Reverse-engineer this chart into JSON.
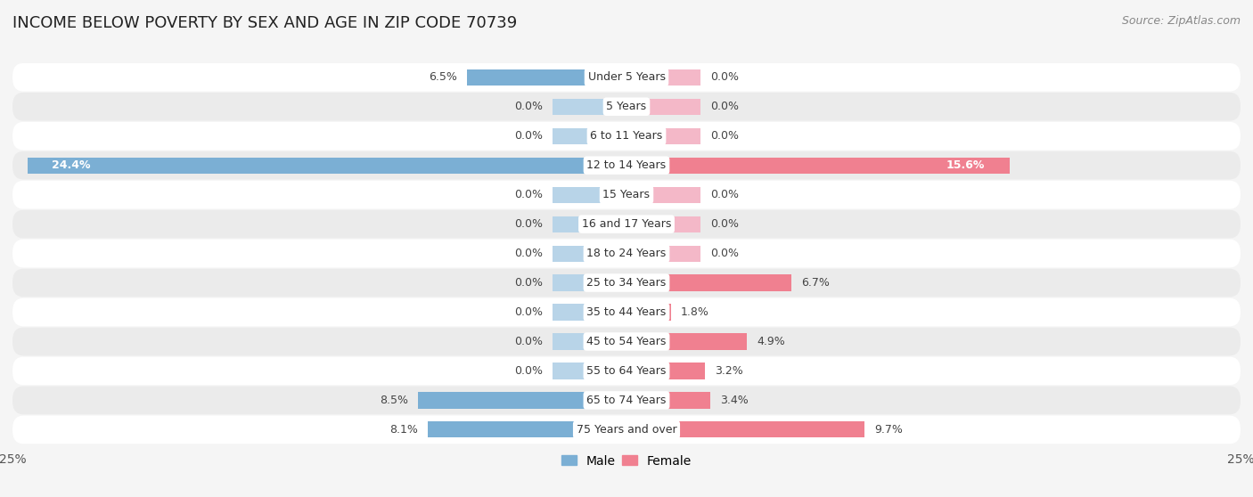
{
  "title": "INCOME BELOW POVERTY BY SEX AND AGE IN ZIP CODE 70739",
  "source": "Source: ZipAtlas.com",
  "categories": [
    "Under 5 Years",
    "5 Years",
    "6 to 11 Years",
    "12 to 14 Years",
    "15 Years",
    "16 and 17 Years",
    "18 to 24 Years",
    "25 to 34 Years",
    "35 to 44 Years",
    "45 to 54 Years",
    "55 to 64 Years",
    "65 to 74 Years",
    "75 Years and over"
  ],
  "male": [
    6.5,
    0.0,
    0.0,
    24.4,
    0.0,
    0.0,
    0.0,
    0.0,
    0.0,
    0.0,
    0.0,
    8.5,
    8.1
  ],
  "female": [
    0.0,
    0.0,
    0.0,
    15.6,
    0.0,
    0.0,
    0.0,
    6.7,
    1.8,
    4.9,
    3.2,
    3.4,
    9.7
  ],
  "male_color": "#7bafd4",
  "female_color": "#f08090",
  "male_stub_color": "#b8d4e8",
  "female_stub_color": "#f4b8c8",
  "background_color": "#f5f5f5",
  "row_bg_even": "#ffffff",
  "row_bg_odd": "#ebebeb",
  "axis_limit": 25.0,
  "title_fontsize": 13,
  "source_fontsize": 9,
  "label_fontsize": 9,
  "category_fontsize": 9,
  "legend_fontsize": 10,
  "tick_fontsize": 10,
  "bar_height": 0.55,
  "stub_size": 3.0
}
